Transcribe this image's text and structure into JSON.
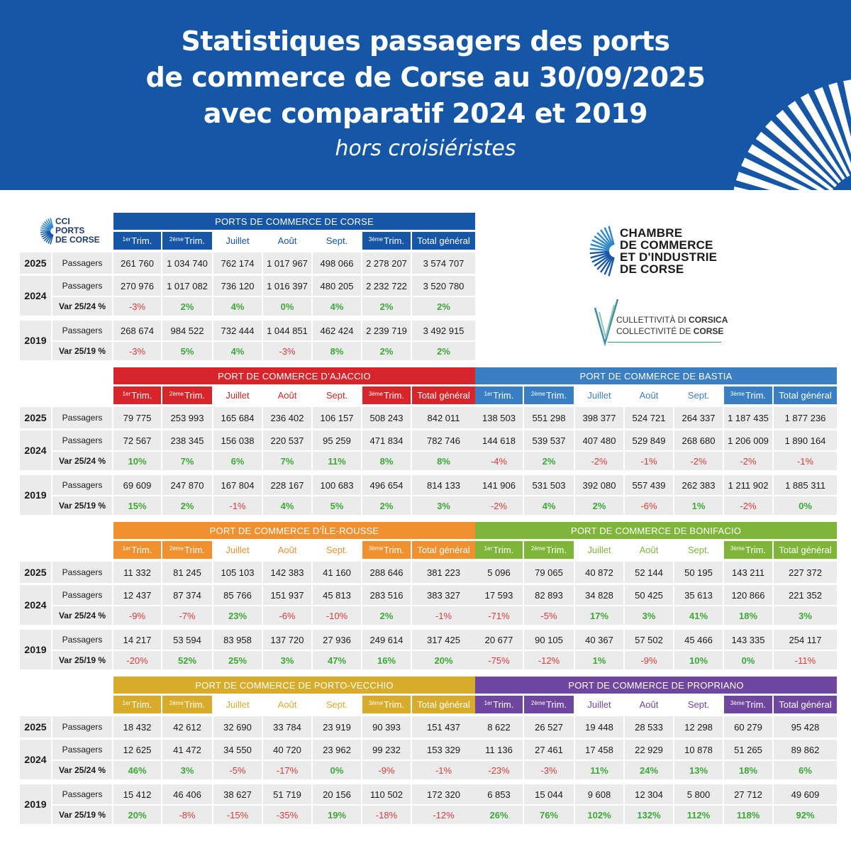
{
  "header": {
    "title_line1": "Statistiques passagers des ports",
    "title_line2": "de commerce de Corse au 30/09/2025",
    "title_line3": "avec comparatif 2024 et 2019",
    "subtitle": "hors croisiéristes"
  },
  "logos": {
    "cci_small": [
      "CCI",
      "PORTS",
      "DE CORSE"
    ],
    "cci_big": [
      "CHAMBRE",
      "DE COMMERCE",
      "ET D'INDUSTRIE",
      "DE CORSE"
    ],
    "collectivite_1_a": "CULLETTIVITÀ DI ",
    "collectivite_1_b": "CORSICA",
    "collectivite_2_a": "COLLECTIVITÉ DE ",
    "collectivite_2_b": "CORSE"
  },
  "columns": [
    {
      "sup": "1er",
      "label": " Trim."
    },
    {
      "sup": "2ème",
      "label": " Trim."
    },
    {
      "sup": "",
      "label": "Juillet"
    },
    {
      "sup": "",
      "label": "Août"
    },
    {
      "sup": "",
      "label": "Sept."
    },
    {
      "sup": "3ème",
      "label": " Trim."
    },
    {
      "sup": "",
      "label": "Total général"
    }
  ],
  "row_labels": {
    "passagers": "Passagers",
    "var_24": "Var 25/24 %",
    "var_19": "Var 25/19 %",
    "y2025": "2025",
    "y2024": "2024",
    "y2019": "2019"
  },
  "tables": [
    {
      "title": "PORTS DE COMMERCE DE CORSE",
      "color": "#1556a6",
      "light": "#ffffff",
      "p2025": [
        "261 760",
        "1 034 740",
        "762 174",
        "1 017 967",
        "498 066",
        "2 278 207",
        "3 574 707"
      ],
      "p2024": [
        "270 976",
        "1 017 082",
        "736 120",
        "1 016 397",
        "480 205",
        "2 232 722",
        "3 520 780"
      ],
      "v24": [
        "-3%",
        "2%",
        "4%",
        "0%",
        "4%",
        "2%",
        "2%"
      ],
      "p2019": [
        "268 674",
        "984 522",
        "732 444",
        "1 044 851",
        "462 424",
        "2 239 719",
        "3 492 915"
      ],
      "v19": [
        "-3%",
        "5%",
        "4%",
        "-3%",
        "8%",
        "2%",
        "2%"
      ]
    },
    {
      "title": "PORT DE COMMERCE D’AJACCIO",
      "color": "#d6262c",
      "light": "#ffffff",
      "p2025": [
        "79 775",
        "253 993",
        "165 684",
        "236 402",
        "106 157",
        "508 243",
        "842 011"
      ],
      "p2024": [
        "72 567",
        "238 345",
        "156 038",
        "220 537",
        "95 259",
        "471 834",
        "782 746"
      ],
      "v24": [
        "10%",
        "7%",
        "6%",
        "7%",
        "11%",
        "8%",
        "8%"
      ],
      "p2019": [
        "69 609",
        "247 870",
        "167 804",
        "228 167",
        "100 683",
        "496 654",
        "814 133"
      ],
      "v19": [
        "15%",
        "2%",
        "-1%",
        "4%",
        "5%",
        "2%",
        "3%"
      ]
    },
    {
      "title": "PORT DE COMMERCE DE BASTIA",
      "color": "#3a7fc4",
      "light": "#ffffff",
      "p2025": [
        "138 503",
        "551 298",
        "398 377",
        "524 721",
        "264 337",
        "1 187 435",
        "1 877 236"
      ],
      "p2024": [
        "144 618",
        "539 537",
        "407 480",
        "529 849",
        "268 680",
        "1 206 009",
        "1 890 164"
      ],
      "v24": [
        "-4%",
        "2%",
        "-2%",
        "-1%",
        "-2%",
        "-2%",
        "-1%"
      ],
      "p2019": [
        "141 906",
        "531 503",
        "392 080",
        "557 439",
        "262 383",
        "1 211 902",
        "1 885 311"
      ],
      "v19": [
        "-2%",
        "4%",
        "2%",
        "-6%",
        "1%",
        "-2%",
        "0%"
      ]
    },
    {
      "title": "PORT DE COMMERCE D’ÎLE-ROUSSE",
      "color": "#f1902f",
      "light": "#ffffff",
      "p2025": [
        "11 332",
        "81 245",
        "105 103",
        "142 383",
        "41 160",
        "288 646",
        "381 223"
      ],
      "p2024": [
        "12 437",
        "87 374",
        "85 766",
        "151 937",
        "45 813",
        "283 516",
        "383 327"
      ],
      "v24": [
        "-9%",
        "-7%",
        "23%",
        "-6%",
        "-10%",
        "2%",
        "-1%"
      ],
      "p2019": [
        "14 217",
        "53 594",
        "83 958",
        "137 720",
        "27 936",
        "249 614",
        "317 425"
      ],
      "v19": [
        "-20%",
        "52%",
        "25%",
        "3%",
        "47%",
        "16%",
        "20%"
      ]
    },
    {
      "title": "PORT DE COMMERCE DE BONIFACIO",
      "color": "#7fb539",
      "light": "#ffffff",
      "p2025": [
        "5 096",
        "79 065",
        "40 872",
        "52 144",
        "50 195",
        "143 211",
        "227 372"
      ],
      "p2024": [
        "17 593",
        "82 893",
        "34 828",
        "50 425",
        "35 613",
        "120 866",
        "221 352"
      ],
      "v24": [
        "-71%",
        "-5%",
        "17%",
        "3%",
        "41%",
        "18%",
        "3%"
      ],
      "p2019": [
        "20 677",
        "90 105",
        "40 367",
        "57 502",
        "45 466",
        "143 335",
        "254 117"
      ],
      "v19": [
        "-75%",
        "-12%",
        "1%",
        "-9%",
        "10%",
        "0%",
        "-11%"
      ]
    },
    {
      "title": "PORT DE COMMERCE DE PORTO-VECCHIO",
      "color": "#d9ab2b",
      "light": "#ffffff",
      "p2025": [
        "18 432",
        "42 612",
        "32 690",
        "33 784",
        "23 919",
        "90 393",
        "151 437"
      ],
      "p2024": [
        "12 625",
        "41 472",
        "34 550",
        "40 720",
        "23 962",
        "99 232",
        "153 329"
      ],
      "v24": [
        "46%",
        "3%",
        "-5%",
        "-17%",
        "0%",
        "-9%",
        "-1%"
      ],
      "p2019": [
        "15 412",
        "46 406",
        "38 627",
        "51 719",
        "20 156",
        "110 502",
        "172 320"
      ],
      "v19": [
        "20%",
        "-8%",
        "-15%",
        "-35%",
        "19%",
        "-18%",
        "-12%"
      ]
    },
    {
      "title": "PORT DE COMMERCE DE PROPRIANO",
      "color": "#6f46a0",
      "light": "#ffffff",
      "p2025": [
        "8 622",
        "26 527",
        "19 448",
        "28 533",
        "12 298",
        "60 279",
        "95 428"
      ],
      "p2024": [
        "11 136",
        "27 461",
        "17 458",
        "22 929",
        "10 878",
        "51 265",
        "89 862"
      ],
      "v24": [
        "-23%",
        "-3%",
        "11%",
        "24%",
        "13%",
        "18%",
        "6%"
      ],
      "p2019": [
        "6 853",
        "15 044",
        "9 608",
        "12 304",
        "5 800",
        "27 712",
        "49 609"
      ],
      "v19": [
        "26%",
        "76%",
        "102%",
        "132%",
        "112%",
        "118%",
        "92%"
      ]
    }
  ]
}
